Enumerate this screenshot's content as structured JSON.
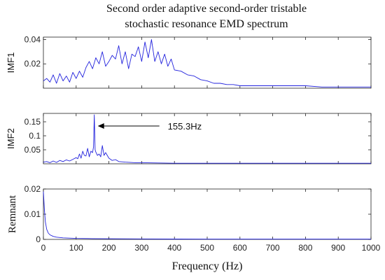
{
  "title_line1": "Second order adaptive second-order tristable",
  "title_line2": "stochastic resonance EMD spectrum",
  "xlabel": "Frequency (Hz)",
  "annotation": {
    "text": "155.3Hz",
    "x": 155.3,
    "y": 0.135
  },
  "line_color": "#2222dd",
  "chart_data": [
    {
      "type": "line",
      "name": "imf1",
      "ylabel": "IMF1",
      "xlim": [
        0,
        1000
      ],
      "ylim": [
        0,
        0.042
      ],
      "yticks": [
        0.02,
        0.04
      ],
      "yticklabels": [
        "0.02",
        "0.04"
      ],
      "show_xticklabels": false,
      "x": [
        0,
        10,
        20,
        30,
        40,
        50,
        60,
        70,
        80,
        90,
        100,
        110,
        120,
        130,
        140,
        150,
        160,
        170,
        180,
        190,
        200,
        210,
        220,
        230,
        240,
        250,
        260,
        270,
        280,
        290,
        300,
        310,
        320,
        330,
        340,
        350,
        360,
        370,
        380,
        390,
        400,
        420,
        440,
        460,
        480,
        500,
        520,
        540,
        560,
        580,
        600,
        650,
        700,
        750,
        800,
        850,
        900,
        950,
        1000
      ],
      "y": [
        0.006,
        0.008,
        0.005,
        0.011,
        0.004,
        0.012,
        0.006,
        0.01,
        0.005,
        0.013,
        0.008,
        0.014,
        0.009,
        0.017,
        0.022,
        0.016,
        0.025,
        0.02,
        0.03,
        0.018,
        0.022,
        0.027,
        0.024,
        0.035,
        0.02,
        0.03,
        0.016,
        0.028,
        0.026,
        0.034,
        0.022,
        0.038,
        0.025,
        0.04,
        0.022,
        0.03,
        0.02,
        0.028,
        0.018,
        0.024,
        0.015,
        0.014,
        0.011,
        0.01,
        0.007,
        0.006,
        0.004,
        0.004,
        0.003,
        0.003,
        0.002,
        0.002,
        0.002,
        0.002,
        0.002,
        0.001,
        0.001,
        0.001,
        0.001
      ]
    },
    {
      "type": "line",
      "name": "imf2",
      "ylabel": "IMF2",
      "xlim": [
        0,
        1000
      ],
      "ylim": [
        0,
        0.18
      ],
      "yticks": [
        0.05,
        0.1,
        0.15
      ],
      "yticklabels": [
        "0.05",
        "0.1",
        "0.15"
      ],
      "show_xticklabels": false,
      "x": [
        0,
        10,
        20,
        30,
        40,
        50,
        60,
        70,
        80,
        90,
        100,
        105,
        110,
        115,
        120,
        125,
        130,
        135,
        140,
        145,
        150,
        153,
        155.3,
        158,
        160,
        165,
        170,
        175,
        180,
        185,
        190,
        200,
        210,
        220,
        230,
        250,
        280,
        300,
        350,
        400,
        500,
        600,
        700,
        800,
        900,
        1000
      ],
      "y": [
        0.006,
        0.008,
        0.004,
        0.01,
        0.005,
        0.012,
        0.008,
        0.014,
        0.01,
        0.016,
        0.022,
        0.018,
        0.035,
        0.02,
        0.045,
        0.03,
        0.028,
        0.055,
        0.025,
        0.045,
        0.04,
        0.06,
        0.175,
        0.05,
        0.042,
        0.03,
        0.035,
        0.025,
        0.065,
        0.03,
        0.04,
        0.02,
        0.012,
        0.015,
        0.008,
        0.006,
        0.004,
        0.004,
        0.003,
        0.002,
        0.002,
        0.002,
        0.002,
        0.002,
        0.002,
        0.002
      ]
    },
    {
      "type": "line",
      "name": "remnant",
      "ylabel": "Remnant",
      "xlim": [
        0,
        1000
      ],
      "ylim": [
        0,
        0.02
      ],
      "yticks": [
        0,
        0.01,
        0.02
      ],
      "yticklabels": [
        "0",
        "0.01",
        "0.02"
      ],
      "show_xticklabels": true,
      "xticks": [
        0,
        100,
        200,
        300,
        400,
        500,
        600,
        700,
        800,
        900,
        1000
      ],
      "xticklabels": [
        "0",
        "100",
        "200",
        "300",
        "400",
        "500",
        "600",
        "700",
        "800",
        "900",
        "1000"
      ],
      "x": [
        0,
        3,
        6,
        10,
        15,
        20,
        30,
        40,
        60,
        80,
        100,
        150,
        200,
        300,
        400,
        500,
        600,
        800,
        1000
      ],
      "y": [
        0.019,
        0.012,
        0.007,
        0.004,
        0.0025,
        0.0018,
        0.0012,
        0.0009,
        0.0006,
        0.0005,
        0.0004,
        0.0003,
        0.00025,
        0.0002,
        0.00015,
        0.0001,
        0.0001,
        0.0001,
        0.0001
      ]
    }
  ]
}
